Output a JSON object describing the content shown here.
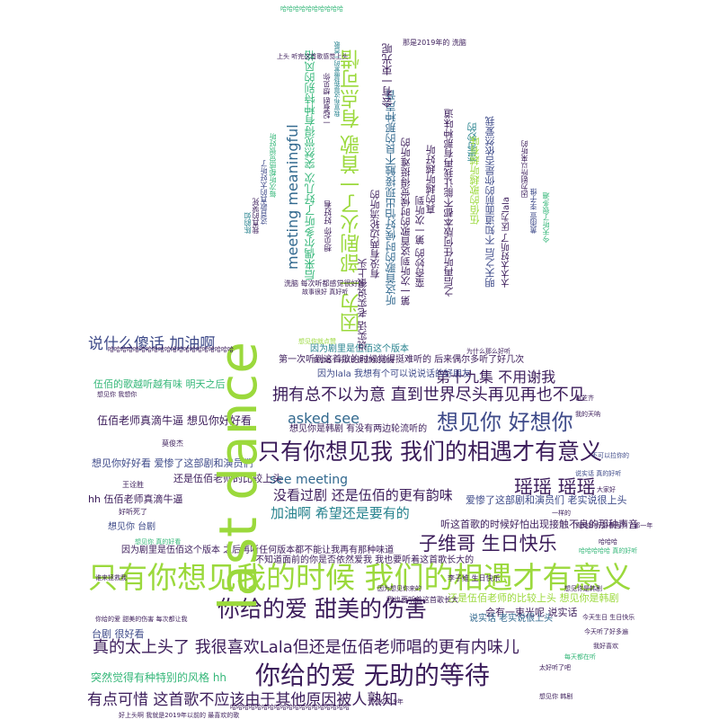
{
  "palette": {
    "dark_purple": "#3b1c5a",
    "indigo": "#3e4a89",
    "blue": "#31688e",
    "teal": "#26828e",
    "green": "#35b779",
    "lime": "#9bd93c",
    "yellow_green": "#b5de2b"
  },
  "words": {
    "last_dance": "last dance",
    "only_see_time": "只有你想见我的时候 我们的相遇才有意义",
    "only_see_me": "只有你想见我 我们的相遇才有意义",
    "helpless_waiting": "你给的爱 无助的等待",
    "sweet_hurt": "你给的爱 甜美的伤害",
    "miss_you": "想见你 好想你",
    "yaoyao": "瑶瑶 瑶瑶",
    "zi_wei_ge": "子维哥 生日快乐",
    "embrace": "拥有总不以为意 直到世界尽头再见再也不见",
    "too_good": "真的太上头了 我很喜欢Lala但还是伍佰老师唱的更有内味儿",
    "pity": "有点可惜 这首歌不应该由于其他原因被人熟知",
    "say_what_silly": "说什么傻话 加油啊",
    "asked_see": "asked see",
    "see_meeting": "see meeting",
    "missed_drama": "没看过剧 还是伍佰的更有韵味",
    "cheer_hope": "加油啊 希望还是要有的",
    "episode_19": "第十九集 不用谢我",
    "wubai_teacher_tears": "伍佰老师真滴牛逼 想见你好好看",
    "hh_wubai_tears": "hh 伍佰老师真滴牛逼",
    "wubai_more_flavor": "还是伍佰老师的比较上头",
    "wubai_flavor_2": "还是伍佰老师的比较上头 想见你是韩剧",
    "sudden_style": "突然觉得有种特别的风格 hh",
    "so_good_1": "台剧 很好看",
    "good_see_drama": "想见你好好看 爱惨了这部剧和演员们",
    "love_drama": "爱惨了这部剧和演员们 老实说很上头",
    "bright_night": "会有一束光呢 说实话",
    "wubai_song_better": "伍佰的歌越听越有味 明天之后",
    "first_listen": "第一次听到这首歌的时候觉得挺难听的 后来偶尔多听了好几次",
    "because_drama": "因为剧里是伍佰这个版本",
    "because_lala": "因为lala 我想有个可以说说话的好朋友",
    "think_mv": "我想有个可以说说话的好朋友",
    "wubai_version": "因为剧里是伍佰这个版本 之后再听任何版本都不能让我再有那种味道",
    "hear_bad": "听这首歌的时候好怕出现接触不良的那种声音",
    "unknown_face": "不知道面前的你是否依然爱我 我也要听着这首歌长大的",
    "see_meet_jp": "想见你是韩剧 有没有两边轮流听的",
    "one_more": "我也要听着这首歌长大",
    "meeting_meaningful": "meeting meaningful",
    "because_drama_arch": "因为一部剧火了一首歌 有点可惜",
    "later_many": "后来偶尔多听了好几次 突然觉得有种特别的风格",
    "will_be_light": "会有一束光呢",
    "wow_feel": "真的越听越好听",
    "first_time_feel": "第一次听到这首歌的时候觉得挺难听的",
    "after_no_flavor": "之后再听任何版本都不能让我再有那种味道",
    "honest": "说实话 老实说很上头",
    "truly": "蛮奇妙的 第一次听到",
    "good_friend": "有没有两边轮流听的",
    "bright_after": "明天之后 不知道面前的你是否依然爱我",
    "taida": "太太太好听了 因为lala",
    "interesting": "蛮奇妙的",
    "wubai_good": "伍佰的歌越听越有味",
    "vert_small_1": "想见你 好好看",
    "vert_small_2": "每次听都感觉很好听",
    "vert_small_3": "这首歌真的太好听了",
    "vert_small_4": "我真的哭死",
    "vert_small_5": "陈韵如",
    "vert_small_6": "黄雨萱 李子维",
    "small_1": "哈哈哈哈哈哈哈哈哈哈",
    "small_2": "那是2019年的 洗脑",
    "small_3": "上头 听完这首歌感觉上头",
    "small_4": "洗脑 每次听都感觉很好听",
    "small_5": "故事很好 真好听",
    "small_6": "今天听了很多遍",
    "small_7": "因为剧所以来听的",
    "small_8": "一起看剧 想见你",
    "small_9": "我宣布这是我最爱的一首歌",
    "small_10": "想见你就点赞",
    "small_11": "为什么那么好听",
    "small_12": "说实话 真的好听",
    "small_13": "真的好听 好像回到了那一年",
    "small_14": "哈哈哈哈哈 真的好听",
    "small_15": "想见你是韩剧",
    "small_16": "今天生日 生日快乐",
    "small_17": "想见你 台剧",
    "small_18": "好听死了",
    "small_19": "谁来拯救我",
    "small_20": "那是2019年",
    "small_21": "想见你 韩剧",
    "small_22": "我的天呐",
    "small_23": "今天听了好多遍",
    "small_24": "太好听了吧",
    "small_25": "每天都在听",
    "small_26": "我好喜欢",
    "small_27": "不可以拉你的",
    "small_28": "大家好",
    "small_29": "哈哈哈",
    "small_30": "李子维 生日快乐",
    "small_31": "因为想见你来的",
    "small_32": "想见你 真的好看",
    "small_33": "哈哈哈哈哈哈哈哈哈哈哈哈哈哈哈哈哈哈哈",
    "small_34": "好上头啊 我就是2019年以前的 最喜欢的歌",
    "small_35": "哈哈哈哈哈哈哈哈哈哈哈哈哈哈哈哈哈哈哈哈",
    "small_36": "你给的爱 甜美的伤害 每次都让我",
    "small_37": "想见你 我想你",
    "small_38": "一样的",
    "small_39": "王诠胜",
    "small_40": "莫俊杰",
    "small_41": "谢芝齐"
  }
}
